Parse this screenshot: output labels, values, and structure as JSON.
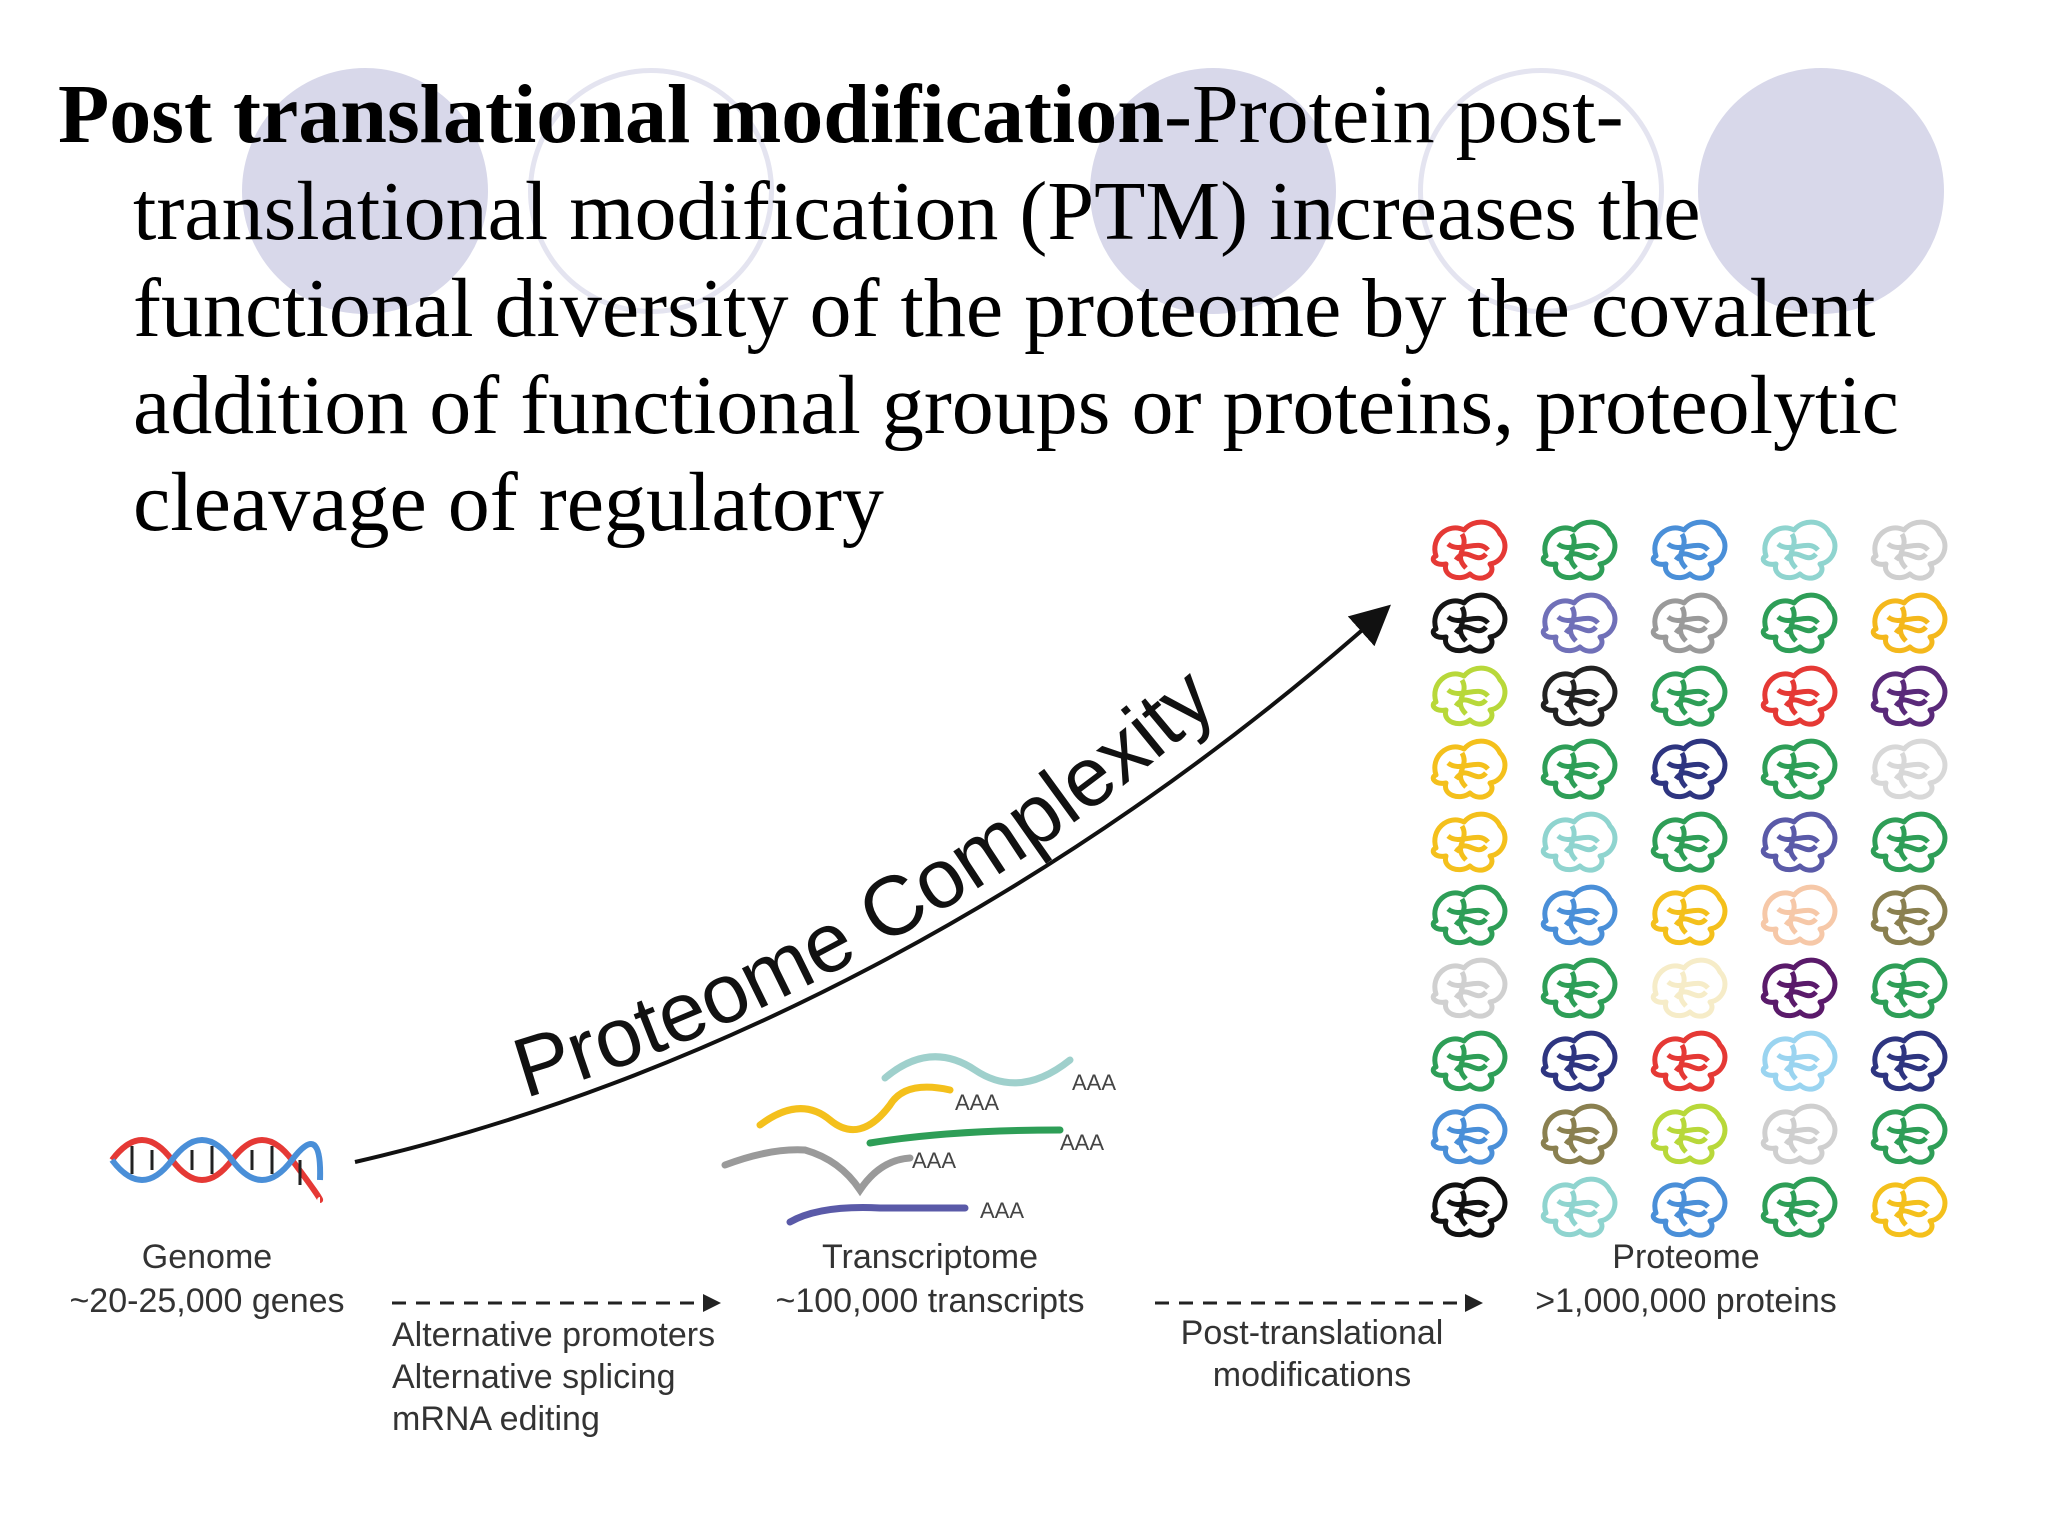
{
  "slide": {
    "lead": "Post translational modification",
    "body": "-Protein post-translational modification (PTM) increases the functional diversity of the proteome by the covalent addition of functional groups or proteins, proteolytic cleavage of regulatory"
  },
  "diagram": {
    "curve_label": "Proteome Complexity",
    "genome": {
      "title": "Genome",
      "count": "~20-25,000 genes"
    },
    "transcriptome": {
      "title": "Transcriptome",
      "count": "~100,000 transcripts",
      "polya": "AAA"
    },
    "proteome": {
      "title": "Proteome",
      "count": ">1,000,000 proteins"
    },
    "step1": {
      "lines": [
        "Alternative promoters",
        "Alternative splicing",
        "mRNA editing"
      ]
    },
    "step2": {
      "lines": [
        "Post-translational",
        "modifications"
      ]
    },
    "protein_colors": [
      [
        "#e53935",
        "#2e9e57",
        "#4a8fd8",
        "#8fd4cf",
        "#cfcfcf"
      ],
      [
        "#151515",
        "#7070b8",
        "#9a9a9a",
        "#2e9e57",
        "#f4b81c"
      ],
      [
        "#b8d83a",
        "#222222",
        "#2e9e57",
        "#e53935",
        "#5a2a7a"
      ],
      [
        "#f4c01c",
        "#2e9e57",
        "#2e3580",
        "#2e9e57",
        "#d8d8d8"
      ],
      [
        "#f4c01c",
        "#8fd4cf",
        "#2e9e57",
        "#5a5aa8",
        "#2e9e57"
      ],
      [
        "#2e9e57",
        "#4a8fd8",
        "#f4c01c",
        "#f6c8a8",
        "#8a8050"
      ],
      [
        "#d0d0d0",
        "#2e9e57",
        "#f6ecc8",
        "#5a1a6a",
        "#2e9e57"
      ],
      [
        "#2e9e57",
        "#2e3580",
        "#e53935",
        "#9ad4f0",
        "#2e3580"
      ],
      [
        "#4a8fd8",
        "#8a8050",
        "#b8d83a",
        "#cfcfcf",
        "#2e9e57"
      ],
      [
        "#111111",
        "#8fd4cf",
        "#4a8fd8",
        "#2e9e57",
        "#f4c01c"
      ]
    ]
  }
}
